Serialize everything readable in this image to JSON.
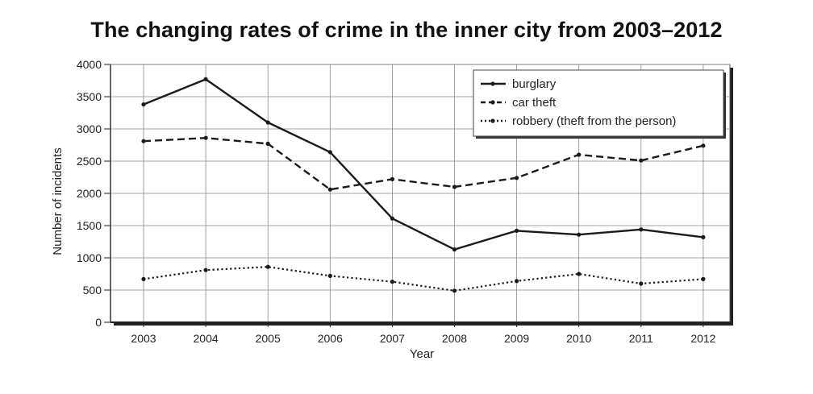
{
  "chart_data": {
    "type": "line",
    "title": "The changing rates of crime in the inner city from 2003–2012",
    "xlabel": "Year",
    "ylabel": "Number of incidents",
    "x": [
      "2003",
      "2004",
      "2005",
      "2006",
      "2007",
      "2008",
      "2009",
      "2010",
      "2011",
      "2012"
    ],
    "ylim": [
      0,
      4000
    ],
    "yticks": [
      "0",
      "500",
      "1000",
      "1500",
      "2000",
      "2500",
      "3000",
      "3500",
      "4000"
    ],
    "grid": true,
    "legend_position": "top-right",
    "series": [
      {
        "name": "burglary",
        "style": "solid",
        "values": [
          3380,
          3770,
          3100,
          2640,
          1610,
          1130,
          1420,
          1360,
          1440,
          1320
        ]
      },
      {
        "name": "car theft",
        "style": "dashed",
        "values": [
          2810,
          2860,
          2770,
          2060,
          2220,
          2100,
          2240,
          2600,
          2510,
          2740
        ]
      },
      {
        "name": "robbery (theft from the person)",
        "style": "dotted",
        "values": [
          670,
          810,
          860,
          720,
          630,
          490,
          640,
          750,
          600,
          670
        ]
      }
    ]
  }
}
